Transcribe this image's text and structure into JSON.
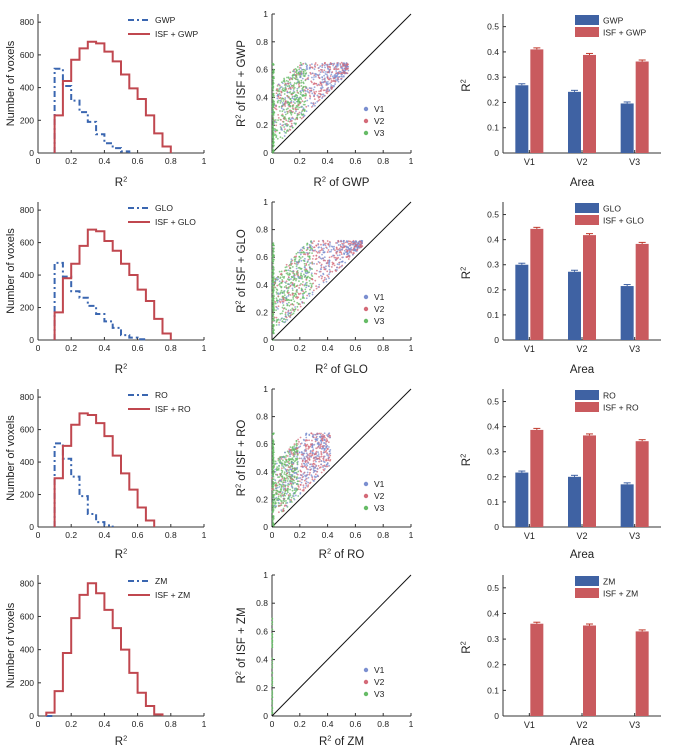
{
  "colors": {
    "gwp_dashed": "#3a66b0",
    "isf_line": "#c0474f",
    "bar_blue": "#3f62a3",
    "bar_red": "#c95a5e",
    "v1": "#7b8fd0",
    "v2": "#d46a78",
    "v3": "#66bb66",
    "axis": "#333333",
    "diag": "#111111"
  },
  "chart_data": [
    {
      "panel": "row1-histogram",
      "type": "line",
      "xlabel": "R",
      "xlabel_sup": "2",
      "ylabel": "Number of voxels",
      "xlim": [
        0,
        1
      ],
      "ylim": [
        0,
        850
      ],
      "xticks": [
        "0",
        "0.2",
        "0.4",
        "0.6",
        "0.8",
        "1"
      ],
      "yticks": [
        "0",
        "200",
        "400",
        "600",
        "800"
      ],
      "legend_position": "top-right",
      "series": [
        {
          "name": "GWP",
          "style": "dashed",
          "x": [
            0.1,
            0.15,
            0.2,
            0.25,
            0.3,
            0.35,
            0.4,
            0.45,
            0.5,
            0.55
          ],
          "values": [
            515,
            410,
            320,
            250,
            190,
            115,
            60,
            30,
            10,
            0
          ]
        },
        {
          "name": "ISF + GWP",
          "style": "solid",
          "x": [
            0.1,
            0.15,
            0.2,
            0.25,
            0.3,
            0.35,
            0.4,
            0.45,
            0.5,
            0.55,
            0.6,
            0.65,
            0.7,
            0.75,
            0.8
          ],
          "values": [
            230,
            440,
            570,
            640,
            680,
            670,
            620,
            560,
            480,
            395,
            330,
            230,
            120,
            40,
            0
          ]
        }
      ]
    },
    {
      "panel": "row1-scatter",
      "type": "scatter",
      "xlabel": "R",
      "xlabel_sup": "2",
      "xlabel_suffix": " of GWP",
      "ylabel": "R",
      "ylabel_sup": "2",
      "ylabel_suffix": " of ISF + GWP",
      "xlim": [
        0,
        1
      ],
      "ylim": [
        0,
        1
      ],
      "xticks": [
        "0",
        "0.2",
        "0.4",
        "0.6",
        "0.8",
        "1"
      ],
      "yticks": [
        "0",
        "0.2",
        "0.4",
        "0.6",
        "0.8",
        "1"
      ],
      "legend_position": "bottom-right",
      "series_names": [
        "V1",
        "V2",
        "V3"
      ],
      "cloud": {
        "x_max": 0.55,
        "y_floor": 0.1,
        "y_top": 0.65
      }
    },
    {
      "panel": "row1-bars",
      "type": "bar",
      "xlabel": "Area",
      "ylabel": "R",
      "ylabel_sup": "2",
      "ylim": [
        0,
        0.55
      ],
      "yticks": [
        "0",
        "0.1",
        "0.2",
        "0.3",
        "0.4",
        "0.5"
      ],
      "categories": [
        "V1",
        "V2",
        "V3"
      ],
      "legend_position": "top-right",
      "series": [
        {
          "name": "GWP",
          "values": [
            0.268,
            0.242,
            0.196
          ]
        },
        {
          "name": "ISF + GWP",
          "values": [
            0.41,
            0.388,
            0.362
          ]
        }
      ]
    },
    {
      "panel": "row2-histogram",
      "type": "line",
      "xlabel": "R",
      "xlabel_sup": "2",
      "ylabel": "Number of voxels",
      "xlim": [
        0,
        1
      ],
      "ylim": [
        0,
        850
      ],
      "xticks": [
        "0",
        "0.2",
        "0.4",
        "0.6",
        "0.8",
        "1"
      ],
      "yticks": [
        "0",
        "200",
        "400",
        "600",
        "800"
      ],
      "legend_position": "top-right",
      "series": [
        {
          "name": "GLO",
          "style": "dashed",
          "x": [
            0.1,
            0.15,
            0.2,
            0.25,
            0.3,
            0.35,
            0.4,
            0.45,
            0.5,
            0.55,
            0.6,
            0.65
          ],
          "values": [
            475,
            390,
            300,
            260,
            210,
            160,
            115,
            75,
            30,
            15,
            5,
            0
          ]
        },
        {
          "name": "ISF + GLO",
          "style": "solid",
          "x": [
            0.1,
            0.15,
            0.2,
            0.25,
            0.3,
            0.35,
            0.4,
            0.45,
            0.5,
            0.55,
            0.6,
            0.65,
            0.7,
            0.75,
            0.8
          ],
          "values": [
            170,
            380,
            470,
            580,
            680,
            670,
            610,
            550,
            470,
            400,
            310,
            240,
            130,
            40,
            0
          ]
        }
      ]
    },
    {
      "panel": "row2-scatter",
      "type": "scatter",
      "xlabel": "R",
      "xlabel_sup": "2",
      "xlabel_suffix": " of GLO",
      "ylabel": "R",
      "ylabel_sup": "2",
      "ylabel_suffix": " of ISF + GLO",
      "xlim": [
        0,
        1
      ],
      "ylim": [
        0,
        1
      ],
      "xticks": [
        "0",
        "0.2",
        "0.4",
        "0.6",
        "0.8",
        "1"
      ],
      "yticks": [
        "0",
        "0.2",
        "0.4",
        "0.6",
        "0.8",
        "1"
      ],
      "legend_position": "bottom-right",
      "series_names": [
        "V1",
        "V2",
        "V3"
      ],
      "cloud": {
        "x_max": 0.65,
        "y_floor": 0.1,
        "y_top": 0.72
      }
    },
    {
      "panel": "row2-bars",
      "type": "bar",
      "xlabel": "Area",
      "ylabel": "R",
      "ylabel_sup": "2",
      "ylim": [
        0,
        0.55
      ],
      "yticks": [
        "0",
        "0.1",
        "0.2",
        "0.3",
        "0.4",
        "0.5"
      ],
      "categories": [
        "V1",
        "V2",
        "V3"
      ],
      "legend_position": "top-right",
      "series": [
        {
          "name": "GLO",
          "values": [
            0.3,
            0.272,
            0.215
          ]
        },
        {
          "name": "ISF + GLO",
          "values": [
            0.443,
            0.418,
            0.383
          ]
        }
      ]
    },
    {
      "panel": "row3-histogram",
      "type": "line",
      "xlabel": "R",
      "xlabel_sup": "2",
      "ylabel": "Number of voxels",
      "xlim": [
        0,
        1
      ],
      "ylim": [
        0,
        850
      ],
      "xticks": [
        "0",
        "0.2",
        "0.4",
        "0.6",
        "0.8",
        "1"
      ],
      "yticks": [
        "0",
        "200",
        "400",
        "600",
        "800"
      ],
      "legend_position": "top-right",
      "series": [
        {
          "name": "RO",
          "style": "dashed",
          "x": [
            0.1,
            0.15,
            0.2,
            0.25,
            0.3,
            0.35,
            0.4,
            0.45
          ],
          "values": [
            515,
            420,
            310,
            190,
            80,
            30,
            10,
            0
          ]
        },
        {
          "name": "ISF + RO",
          "style": "solid",
          "x": [
            0.1,
            0.15,
            0.2,
            0.25,
            0.3,
            0.35,
            0.4,
            0.45,
            0.5,
            0.55,
            0.6,
            0.65,
            0.7
          ],
          "values": [
            300,
            500,
            630,
            700,
            690,
            640,
            560,
            440,
            330,
            230,
            120,
            40,
            0
          ]
        }
      ]
    },
    {
      "panel": "row3-scatter",
      "type": "scatter",
      "xlabel": "R",
      "xlabel_sup": "2",
      "xlabel_suffix": " of RO",
      "ylabel": "R",
      "ylabel_sup": "2",
      "ylabel_suffix": " of ISF + RO",
      "xlim": [
        0,
        1
      ],
      "ylim": [
        0,
        1
      ],
      "xticks": [
        "0",
        "0.2",
        "0.4",
        "0.6",
        "0.8",
        "1"
      ],
      "yticks": [
        "0",
        "0.2",
        "0.4",
        "0.6",
        "0.8",
        "1"
      ],
      "legend_position": "bottom-right",
      "series_names": [
        "V1",
        "V2",
        "V3"
      ],
      "cloud": {
        "x_max": 0.42,
        "y_floor": 0.1,
        "y_top": 0.68
      }
    },
    {
      "panel": "row3-bars",
      "type": "bar",
      "xlabel": "Area",
      "ylabel": "R",
      "ylabel_sup": "2",
      "ylim": [
        0,
        0.55
      ],
      "yticks": [
        "0",
        "0.1",
        "0.2",
        "0.3",
        "0.4",
        "0.5"
      ],
      "categories": [
        "V1",
        "V2",
        "V3"
      ],
      "legend_position": "top-right",
      "series": [
        {
          "name": "RO",
          "values": [
            0.217,
            0.2,
            0.17
          ]
        },
        {
          "name": "ISF + RO",
          "values": [
            0.387,
            0.365,
            0.342
          ]
        }
      ]
    },
    {
      "panel": "row4-histogram",
      "type": "line",
      "xlabel": "R",
      "xlabel_sup": "2",
      "ylabel": "Number of voxels",
      "xlim": [
        0,
        1
      ],
      "ylim": [
        0,
        850
      ],
      "xticks": [
        "0",
        "0.2",
        "0.4",
        "0.6",
        "0.8",
        "1"
      ],
      "yticks": [
        "0",
        "200",
        "400",
        "600",
        "800"
      ],
      "legend_position": "top-right",
      "series": [
        {
          "name": "ZM",
          "style": "dashed",
          "x": [
            0.05,
            0.1
          ],
          "values": [
            0,
            0
          ]
        },
        {
          "name": "ISF + ZM",
          "style": "solid",
          "x": [
            0.05,
            0.1,
            0.15,
            0.2,
            0.25,
            0.3,
            0.35,
            0.4,
            0.45,
            0.5,
            0.55,
            0.6,
            0.65,
            0.7,
            0.75
          ],
          "values": [
            20,
            150,
            380,
            590,
            730,
            800,
            740,
            640,
            530,
            400,
            260,
            140,
            60,
            10,
            0
          ]
        }
      ]
    },
    {
      "panel": "row4-scatter",
      "type": "scatter",
      "xlabel": "R",
      "xlabel_sup": "2",
      "xlabel_suffix": " of ZM",
      "ylabel": "R",
      "ylabel_sup": "2",
      "ylabel_suffix": " of ISF + ZM",
      "xlim": [
        0,
        1
      ],
      "ylim": [
        0,
        1
      ],
      "xticks": [
        "0",
        "0.2",
        "0.4",
        "0.6",
        "0.8",
        "1"
      ],
      "yticks": [
        "0",
        "0.2",
        "0.4",
        "0.6",
        "0.8",
        "1"
      ],
      "legend_position": "bottom-right",
      "series_names": [
        "V1",
        "V2",
        "V3"
      ],
      "cloud": {
        "x_max": 0.0,
        "y_floor": 0.0,
        "y_top": 0.7
      }
    },
    {
      "panel": "row4-bars",
      "type": "bar",
      "xlabel": "Area",
      "ylabel": "R",
      "ylabel_sup": "2",
      "ylim": [
        0,
        0.55
      ],
      "yticks": [
        "0",
        "0.1",
        "0.2",
        "0.3",
        "0.4",
        "0.5"
      ],
      "categories": [
        "V1",
        "V2",
        "V3"
      ],
      "legend_position": "top-right",
      "series": [
        {
          "name": "ZM",
          "values": [
            0,
            0,
            0
          ]
        },
        {
          "name": "ISF + ZM",
          "values": [
            0.36,
            0.353,
            0.33
          ]
        }
      ]
    }
  ]
}
